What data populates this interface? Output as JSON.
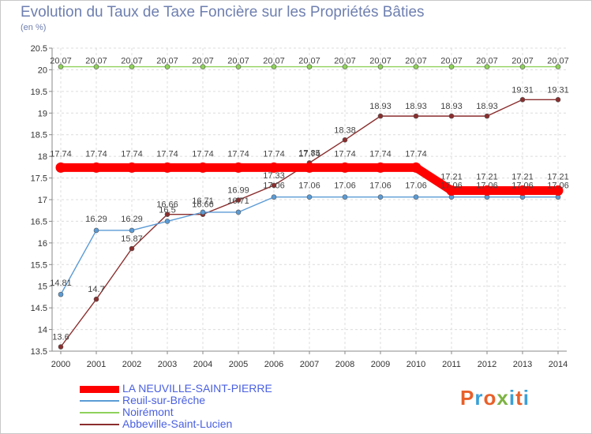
{
  "title": "Evolution du Taux de Taxe Foncière sur les Propriétés Bâties",
  "subtitle": "(en %)",
  "logo": {
    "text": "Proxiti",
    "colors": [
      "#e8602a",
      "#3aa0d8",
      "#e8602a",
      "#7cb342",
      "#3aa0d8",
      "#e8602a",
      "#3aa0d8"
    ]
  },
  "chart_data": {
    "type": "line",
    "title": "Evolution du Taux de Taxe Foncière sur les Propriétés Bâties",
    "ylabel": "(en %)",
    "xlabel": "",
    "x": [
      "2000",
      "2001",
      "2002",
      "2003",
      "2004",
      "2005",
      "2006",
      "2007",
      "2008",
      "2009",
      "2010",
      "2011",
      "2012",
      "2013",
      "2014"
    ],
    "yticks": [
      "13.5",
      "14",
      "14.5",
      "15",
      "15.5",
      "16",
      "16.5",
      "17",
      "17.5",
      "18",
      "18.5",
      "19",
      "19.5",
      "20",
      "20.5"
    ],
    "ylim": [
      13.5,
      20.5
    ],
    "grid": true,
    "legend_position": "bottom-left",
    "series": [
      {
        "name": "LA NEUVILLE-SAINT-PIERRE",
        "color": "#ff0000",
        "style": "thick",
        "values": [
          17.74,
          17.74,
          17.74,
          17.74,
          17.74,
          17.74,
          17.74,
          17.74,
          17.74,
          17.74,
          17.74,
          17.21,
          17.21,
          17.21,
          17.21
        ],
        "labels": [
          "17.74",
          "17.74",
          "17.74",
          "17.74",
          "17.74",
          "17.74",
          "17.74",
          "17.74",
          "17.74",
          "17.74",
          "17.74",
          "17.21",
          "17.21",
          "17.21",
          "17.21"
        ]
      },
      {
        "name": "Reuil-sur-Brêche",
        "color": "#5b9bd5",
        "style": "thin",
        "values": [
          14.81,
          16.29,
          16.29,
          16.5,
          16.71,
          16.71,
          17.06,
          17.06,
          17.06,
          17.06,
          17.06,
          17.06,
          17.06,
          17.06,
          17.06
        ],
        "labels": [
          "14.81",
          "16.29",
          "16.29",
          "16.5",
          "16.71",
          "16.71",
          "17.06",
          "17.06",
          "17.06",
          "17.06",
          "17.06",
          "17.06",
          "17.06",
          "17.06",
          "17.06"
        ]
      },
      {
        "name": "Noirémont",
        "color": "#8ed15a",
        "style": "thin",
        "values": [
          20.07,
          20.07,
          20.07,
          20.07,
          20.07,
          20.07,
          20.07,
          20.07,
          20.07,
          20.07,
          20.07,
          20.07,
          20.07,
          20.07,
          20.07
        ],
        "labels": [
          "20.07",
          "20.07",
          "20.07",
          "20.07",
          "20.07",
          "20.07",
          "20.07",
          "20.07",
          "20.07",
          "20.07",
          "20.07",
          "20.07",
          "20.07",
          "20.07",
          "20.07"
        ]
      },
      {
        "name": "Abbeville-Saint-Lucien",
        "color": "#8b2e2e",
        "style": "thin",
        "values": [
          13.6,
          14.7,
          15.87,
          16.66,
          16.66,
          16.99,
          17.33,
          17.85,
          18.38,
          18.93,
          18.93,
          18.93,
          18.93,
          19.31,
          19.31
        ],
        "labels": [
          "13.6",
          "14.7",
          "15.87",
          "16.66",
          "16.66",
          "16.99",
          "17.33",
          "17.85",
          "18.38",
          "18.93",
          "18.93",
          "18.93",
          "18.93",
          "19.31",
          "19.31"
        ]
      }
    ]
  }
}
